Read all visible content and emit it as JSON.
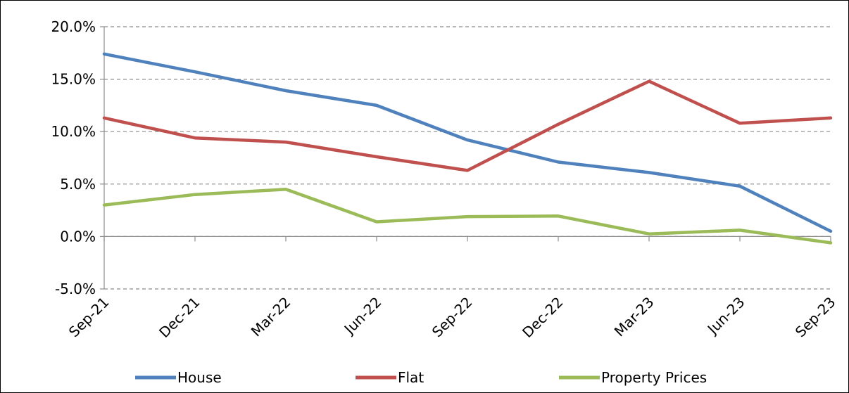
{
  "chart_data": {
    "type": "line",
    "title": "",
    "xlabel": "",
    "ylabel": "",
    "categories": [
      "Sep-21",
      "Dec-21",
      "Mar-22",
      "Jun-22",
      "Sep-22",
      "Dec-22",
      "Mar-23",
      "Jun-23",
      "Sep-23"
    ],
    "ylim": [
      -5,
      20
    ],
    "yticks": [
      -5,
      0,
      5,
      10,
      15,
      20
    ],
    "ytick_labels": [
      "-5.0%",
      "0.0%",
      "5.0%",
      "10.0%",
      "15.0%",
      "20.0%"
    ],
    "grid": "horizontal-dashed",
    "legend_position": "bottom",
    "series": [
      {
        "name": "House",
        "color": "#4F81BD",
        "values": [
          17.4,
          15.7,
          13.9,
          12.5,
          9.2,
          7.1,
          6.1,
          4.8,
          0.5
        ]
      },
      {
        "name": "Flat",
        "color": "#C0504D",
        "values": [
          11.3,
          9.4,
          9.0,
          7.6,
          6.3,
          10.7,
          14.8,
          10.8,
          11.3
        ]
      },
      {
        "name": "Property Prices",
        "color": "#9BBB59",
        "values": [
          3.0,
          4.0,
          4.5,
          1.4,
          1.9,
          1.95,
          0.25,
          0.6,
          -0.6
        ]
      }
    ]
  }
}
